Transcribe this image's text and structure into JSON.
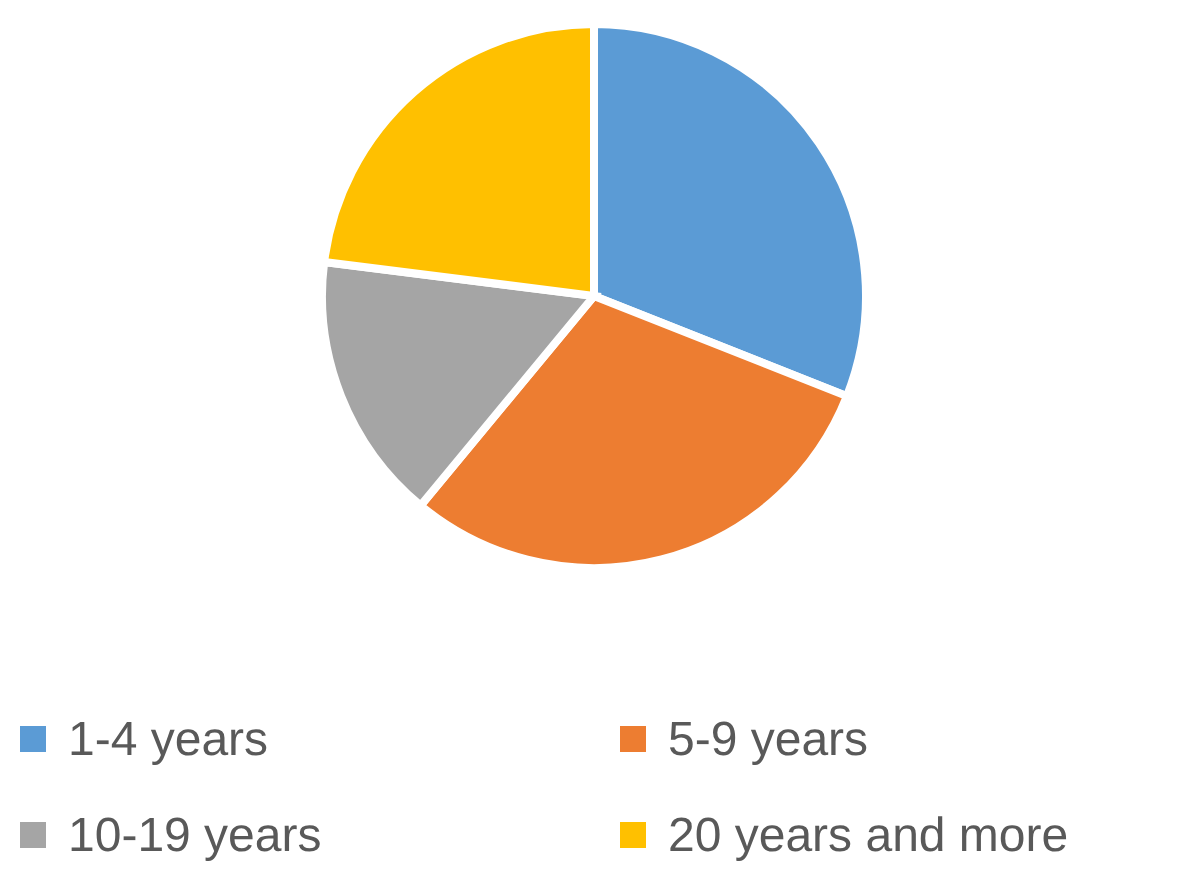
{
  "chart_data": {
    "type": "pie",
    "categories": [
      "1-4 years",
      "5-9 years",
      "10-19 years",
      "20 years and more"
    ],
    "values": [
      31,
      30,
      16,
      23
    ],
    "colors": [
      "#5b9bd5",
      "#ed7d31",
      "#a5a5a5",
      "#ffc000"
    ],
    "legend": "bottom"
  }
}
